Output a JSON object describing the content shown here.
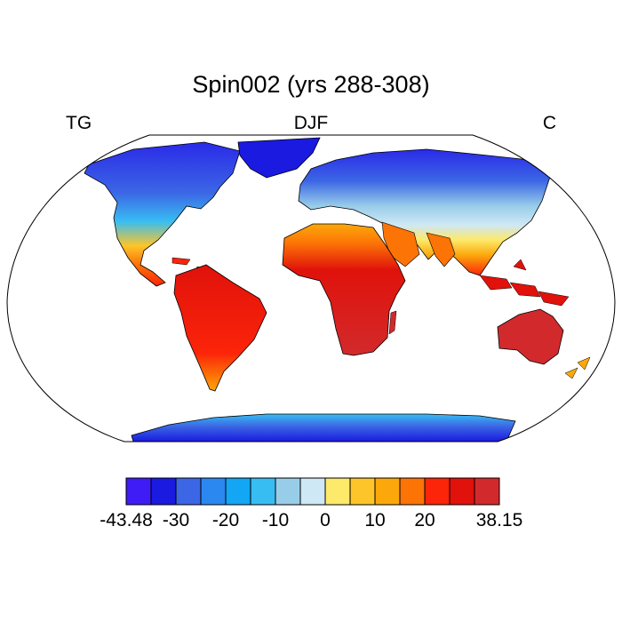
{
  "title": "Spin002 (yrs 288-308)",
  "left_string": "TG",
  "center_string": "DJF",
  "right_string": "C",
  "map": {
    "projection": "Robinson",
    "variable": "TG",
    "units": "C",
    "season": "DJF"
  },
  "colorbar": {
    "colors": [
      "#3f1cf5",
      "#1a1ae0",
      "#3b66e5",
      "#2b88f0",
      "#12a6f5",
      "#38bdf2",
      "#98cdea",
      "#cfe8f5",
      "#fde96a",
      "#fdc52a",
      "#fca80b",
      "#fc7306",
      "#fc2409",
      "#e0120b",
      "#d22a2c"
    ],
    "tick_labels": [
      "-43.48",
      "-30",
      "-20",
      "-10",
      "0",
      "10",
      "20",
      "38.15"
    ],
    "tick_boundary_index": [
      0,
      2,
      4,
      6,
      8,
      10,
      12,
      15
    ]
  }
}
